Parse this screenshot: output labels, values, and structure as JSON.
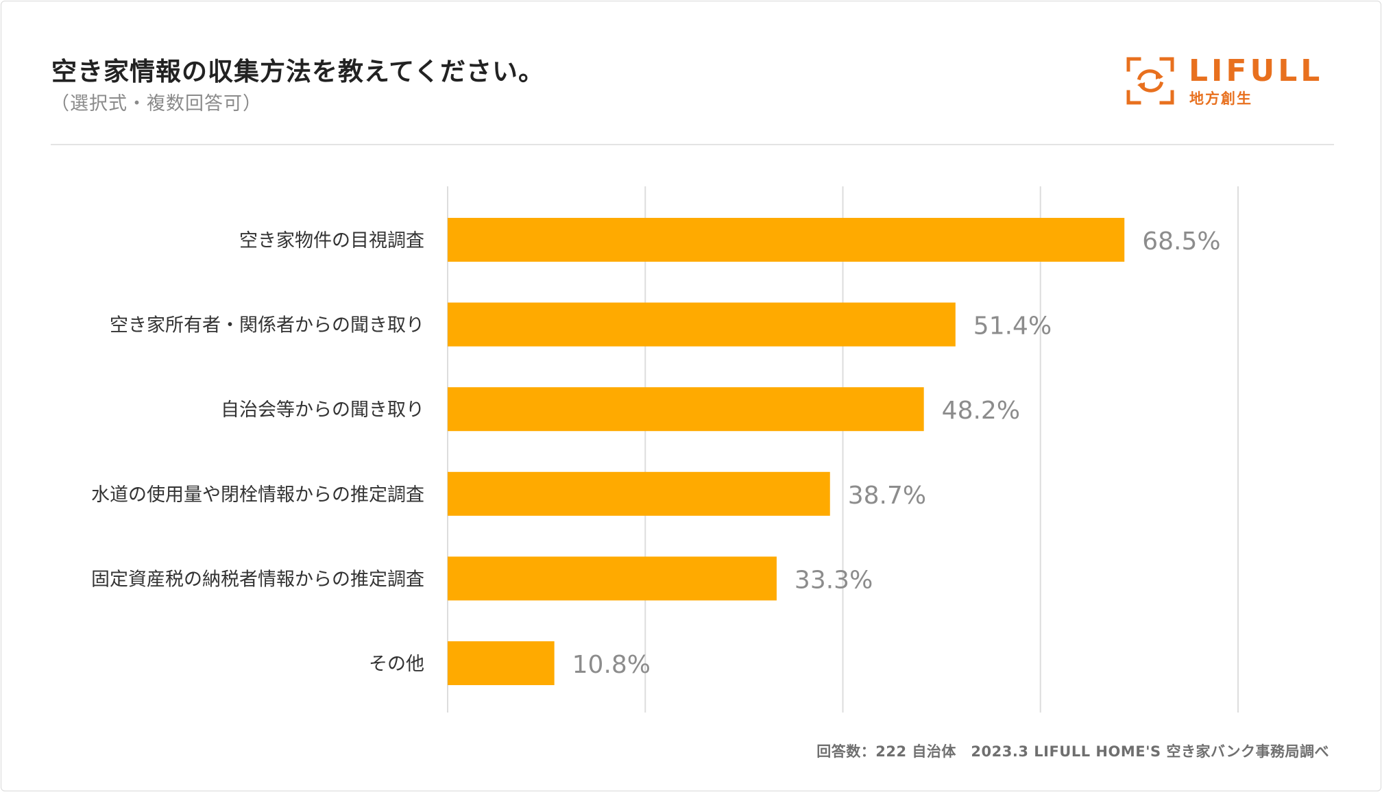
{
  "header": {
    "title": "空き家情報の収集方法を教えてください。",
    "subtitle": "（選択式・複数回答可）"
  },
  "logo": {
    "brand": "LIFULL",
    "sub": "地方創生",
    "icon": "refresh-frame-icon",
    "color": "#e8701e"
  },
  "footer": {
    "note": "回答数：222 自治体　2023.3 LIFULL HOME'S 空き家バンク事務局調べ"
  },
  "colors": {
    "bar": "#FFAA00",
    "value_label": "#8c8c8c",
    "grid": "#dddddd"
  },
  "chart_data": {
    "type": "bar",
    "orientation": "horizontal",
    "categories": [
      "空き家物件の目視調査",
      "空き家所有者・関係者からの聞き取り",
      "自治会等からの聞き取り",
      "水道の使用量や閉栓情報からの推定調査",
      "固定資産税の納税者情報からの推定調査",
      "その他"
    ],
    "values": [
      68.5,
      51.4,
      48.2,
      38.7,
      33.3,
      10.8
    ],
    "value_labels": [
      "68.5%",
      "51.4%",
      "48.2%",
      "38.7%",
      "33.3%",
      "10.8%"
    ],
    "xlim": [
      0,
      80
    ],
    "gridlines": [
      0,
      20,
      40,
      60,
      80
    ],
    "grid": true,
    "legend": "none"
  }
}
